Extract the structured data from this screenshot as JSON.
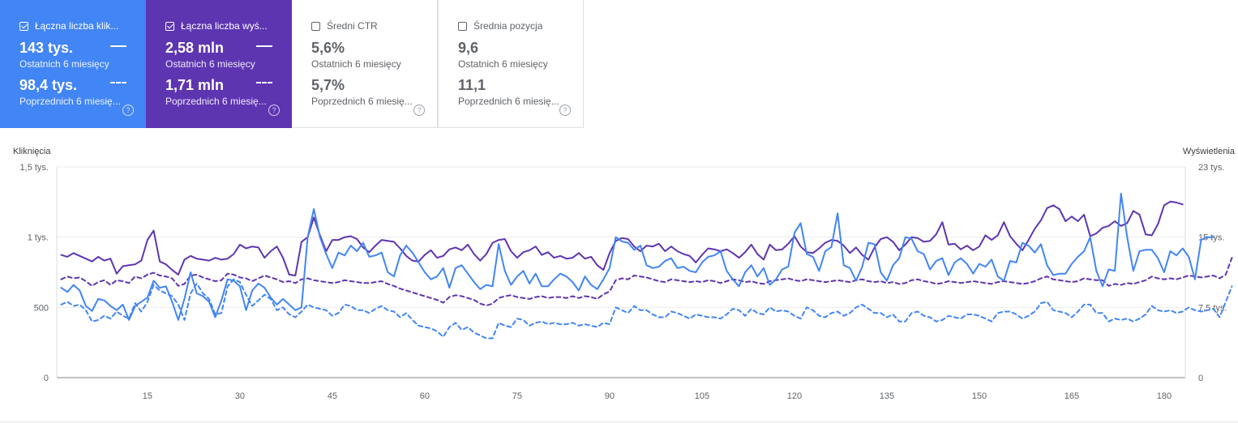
{
  "metrics": [
    {
      "label": "Łączna liczba klik...",
      "selected": true,
      "color": "#4285f4",
      "current_value": "143 tys.",
      "current_period": "Ostatnich 6 miesięcy",
      "previous_value": "98,4 tys.",
      "previous_period": "Poprzednich 6 miesię...",
      "help": "?"
    },
    {
      "label": "Łączna liczba wyś...",
      "selected": true,
      "color": "#5e35b1",
      "current_value": "2,58 mln",
      "current_period": "Ostatnich 6 miesięcy",
      "previous_value": "1,71 mln",
      "previous_period": "Poprzednich 6 miesię...",
      "help": "?"
    },
    {
      "label": "Średni CTR",
      "selected": false,
      "current_value": "5,6%",
      "current_period": "Ostatnich 6 miesięcy",
      "previous_value": "5,7%",
      "previous_period": "Poprzednich 6 miesię...",
      "help": "?"
    },
    {
      "label": "Średnia pozycja",
      "selected": false,
      "current_value": "9,6",
      "current_period": "Ostatnich 6 miesięcy",
      "previous_value": "11,1",
      "previous_period": "Poprzednich 6 miesię...",
      "help": "?"
    }
  ],
  "chart_data": {
    "type": "line",
    "left_axis_title": "Kliknięcia",
    "right_axis_title": "Wyświetlenia",
    "left_ticks": [
      {
        "v": 0,
        "label": "0"
      },
      {
        "v": 500,
        "label": "500"
      },
      {
        "v": 1000,
        "label": "1 tys."
      },
      {
        "v": 1500,
        "label": "1,5 tys."
      }
    ],
    "right_ticks": [
      {
        "v": 0,
        "label": "0"
      },
      {
        "v": 7500,
        "label": "7,5 tys."
      },
      {
        "v": 15000,
        "label": "15 tys."
      },
      {
        "v": 22500,
        "label": "23 tys."
      }
    ],
    "left_ylim": [
      0,
      1500
    ],
    "right_ylim": [
      0,
      22500
    ],
    "x_ticks": [
      15,
      30,
      45,
      60,
      75,
      90,
      105,
      120,
      135,
      150,
      165,
      180
    ],
    "x_range": [
      1,
      183
    ],
    "colors": {
      "clicks": "#4285f4",
      "impressions": "#5e35b1"
    },
    "series": [
      {
        "metric": "clicks",
        "period": "current",
        "values": [
          640,
          610,
          660,
          620,
          510,
          475,
          560,
          550,
          510,
          480,
          520,
          410,
          510,
          540,
          570,
          690,
          640,
          650,
          540,
          410,
          560,
          750,
          600,
          580,
          540,
          430,
          550,
          700,
          690,
          650,
          480,
          620,
          670,
          640,
          570,
          520,
          560,
          520,
          480,
          500,
          1000,
          1200,
          1000,
          880,
          780,
          890,
          870,
          940,
          900,
          960,
          860,
          870,
          890,
          750,
          720,
          870,
          940,
          890,
          820,
          750,
          700,
          720,
          780,
          640,
          780,
          800,
          740,
          680,
          630,
          660,
          650,
          950,
          760,
          660,
          720,
          760,
          670,
          740,
          650,
          650,
          700,
          740,
          720,
          680,
          620,
          720,
          660,
          630,
          700,
          780,
          1000,
          970,
          960,
          910,
          940,
          800,
          780,
          790,
          830,
          850,
          780,
          790,
          760,
          750,
          820,
          860,
          870,
          900,
          760,
          700,
          650,
          750,
          800,
          720,
          780,
          660,
          700,
          770,
          790,
          1030,
          1100,
          880,
          860,
          760,
          900,
          930,
          1170,
          800,
          780,
          690,
          790,
          960,
          950,
          750,
          690,
          800,
          850,
          1000,
          990,
          900,
          880,
          770,
          830,
          850,
          730,
          820,
          850,
          810,
          740,
          810,
          790,
          840,
          720,
          690,
          830,
          820,
          960,
          940,
          890,
          950,
          800,
          730,
          740,
          740,
          810,
          860,
          900,
          1000,
          760,
          650,
          770,
          760,
          1310,
          1000,
          760,
          900,
          910,
          910,
          850,
          750,
          900,
          870,
          920,
          860,
          700,
          980,
          1000,
          1000
        ]
      },
      {
        "metric": "impressions",
        "period": "current",
        "values": [
          13100,
          12900,
          13300,
          13000,
          12700,
          12400,
          12900,
          12500,
          12700,
          11100,
          11900,
          12000,
          12100,
          12500,
          14700,
          15700,
          12400,
          12100,
          11500,
          11000,
          12600,
          13000,
          12700,
          12600,
          12500,
          12800,
          12600,
          12700,
          13200,
          14200,
          13800,
          14000,
          13900,
          12800,
          13500,
          14000,
          12800,
          11000,
          10900,
          14500,
          15000,
          17100,
          15200,
          13500,
          14700,
          14700,
          15000,
          15100,
          14800,
          13900,
          13400,
          14100,
          14700,
          14600,
          14500,
          13800,
          13000,
          12500,
          12400,
          13100,
          13600,
          12800,
          13000,
          13700,
          13900,
          13600,
          14200,
          13200,
          12500,
          13200,
          14400,
          14700,
          14800,
          13500,
          12800,
          13400,
          13600,
          14000,
          13100,
          13400,
          12800,
          13000,
          12700,
          12800,
          13300,
          12700,
          12900,
          12000,
          11500,
          13300,
          14600,
          14900,
          14800,
          14000,
          13500,
          14100,
          14000,
          14300,
          13500,
          14000,
          13500,
          13200,
          13000,
          12300,
          13100,
          13800,
          13700,
          13500,
          13700,
          13300,
          12800,
          13400,
          14200,
          13200,
          12600,
          14200,
          13600,
          13700,
          14300,
          15100,
          14000,
          13400,
          13300,
          13800,
          14400,
          14700,
          14600,
          14100,
          13300,
          13900,
          13100,
          12600,
          13900,
          14800,
          15000,
          14500,
          13600,
          14200,
          15000,
          14900,
          14500,
          14600,
          15300,
          16600,
          14200,
          14300,
          13700,
          14100,
          13600,
          14000,
          15200,
          14700,
          15200,
          16600,
          15100,
          14300,
          13600,
          14700,
          15900,
          16800,
          18100,
          18400,
          18000,
          16700,
          17200,
          16700,
          17400,
          15100,
          15400,
          16000,
          16200,
          16700,
          16200,
          16500,
          17800,
          17400,
          15300,
          15200,
          16400,
          18400,
          18800,
          18700,
          18500
        ]
      },
      {
        "metric": "clicks",
        "period": "previous",
        "values": [
          520,
          540,
          510,
          520,
          480,
          400,
          410,
          440,
          420,
          470,
          440,
          420,
          530,
          470,
          540,
          660,
          620,
          600,
          580,
          520,
          410,
          600,
          670,
          600,
          560,
          450,
          460,
          650,
          700,
          680,
          590,
          510,
          550,
          590,
          560,
          480,
          500,
          450,
          430,
          470,
          520,
          500,
          490,
          480,
          440,
          460,
          520,
          510,
          480,
          480,
          460,
          490,
          510,
          480,
          470,
          430,
          460,
          410,
          370,
          360,
          350,
          330,
          290,
          360,
          390,
          340,
          360,
          320,
          300,
          280,
          280,
          390,
          370,
          360,
          420,
          410,
          370,
          390,
          400,
          380,
          390,
          380,
          380,
          390,
          370,
          380,
          370,
          360,
          390,
          380,
          500,
          480,
          460,
          510,
          480,
          480,
          450,
          430,
          430,
          470,
          460,
          440,
          420,
          450,
          440,
          430,
          430,
          420,
          450,
          490,
          480,
          440,
          490,
          460,
          450,
          500,
          470,
          480,
          470,
          440,
          420,
          500,
          480,
          440,
          430,
          460,
          470,
          440,
          460,
          500,
          520,
          490,
          460,
          460,
          430,
          450,
          400,
          400,
          460,
          470,
          440,
          430,
          400,
          410,
          440,
          430,
          420,
          450,
          450,
          440,
          420,
          400,
          460,
          470,
          470,
          450,
          420,
          440,
          470,
          530,
          540,
          480,
          470,
          460,
          430,
          470,
          520,
          520,
          460,
          460,
          400,
          420,
          410,
          420,
          400,
          420,
          450,
          510,
          480,
          470,
          480,
          460,
          470,
          500,
          480,
          470,
          480,
          490,
          430,
          540,
          650
        ]
      },
      {
        "metric": "impressions",
        "period": "previous",
        "values": [
          10500,
          10800,
          10600,
          10700,
          10300,
          9800,
          10200,
          10400,
          9900,
          10400,
          10300,
          10100,
          10800,
          10600,
          11000,
          11200,
          10900,
          10800,
          10600,
          9800,
          10000,
          10900,
          11000,
          10700,
          10500,
          10300,
          10400,
          11100,
          11000,
          10700,
          10600,
          10300,
          10600,
          10900,
          10700,
          10500,
          10200,
          10300,
          10100,
          10500,
          10600,
          10400,
          10300,
          10200,
          10100,
          10200,
          10400,
          10300,
          10200,
          10100,
          10100,
          10200,
          10300,
          10000,
          9800,
          9500,
          9300,
          9100,
          8900,
          8700,
          8500,
          8300,
          8000,
          8600,
          8800,
          8700,
          8500,
          8300,
          7900,
          7700,
          7900,
          8500,
          8700,
          8800,
          8600,
          8500,
          8400,
          8600,
          8700,
          8500,
          8600,
          8600,
          8500,
          8700,
          8500,
          8700,
          8600,
          8400,
          8900,
          9200,
          10400,
          10600,
          10500,
          10900,
          10800,
          10700,
          10500,
          10300,
          10200,
          10500,
          10400,
          10300,
          10200,
          10300,
          10200,
          10400,
          10300,
          10100,
          10300,
          10500,
          10400,
          10200,
          10300,
          10100,
          10000,
          10300,
          10400,
          10500,
          10600,
          10400,
          10300,
          10500,
          10400,
          10300,
          10200,
          10300,
          10400,
          10300,
          10200,
          10400,
          10500,
          10300,
          10200,
          10300,
          10100,
          10200,
          10000,
          10100,
          10400,
          10500,
          10300,
          10200,
          10000,
          10100,
          10300,
          10200,
          10100,
          10200,
          10300,
          10200,
          10100,
          10000,
          10200,
          10300,
          10200,
          10100,
          10000,
          10100,
          10300,
          10600,
          10800,
          10500,
          10400,
          10300,
          10200,
          10300,
          10600,
          10500,
          10400,
          10400,
          9800,
          10000,
          9900,
          10100,
          10000,
          10200,
          10400,
          10800,
          10600,
          10500,
          10600,
          10500,
          10700,
          10900,
          10800,
          10700,
          10800,
          10900,
          10600,
          11000,
          12800
        ]
      }
    ]
  }
}
